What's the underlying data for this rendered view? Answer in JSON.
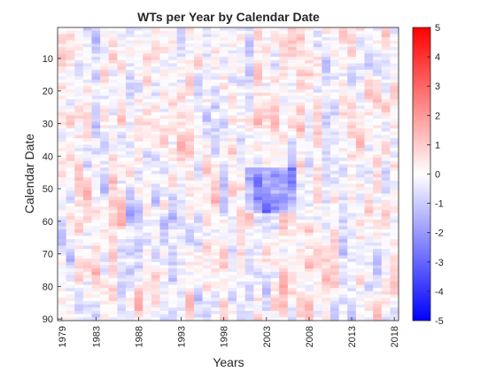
{
  "chart_data": {
    "type": "heatmap",
    "title": "WTs per Year by Calendar Date",
    "xlabel": "Years",
    "ylabel": "Calendar Date",
    "x_range": [
      1979,
      2018
    ],
    "y_range": [
      1,
      90
    ],
    "x_ticks": [
      "1979",
      "1983",
      "1988",
      "1993",
      "1998",
      "2003",
      "2008",
      "2013",
      "2018"
    ],
    "y_ticks": [
      "10",
      "20",
      "30",
      "40",
      "50",
      "60",
      "70",
      "80",
      "90"
    ],
    "colorbar": {
      "min": -5,
      "max": 5,
      "ticks": [
        "5",
        "4",
        "3",
        "2",
        "1",
        "0",
        "-1",
        "-2",
        "-3",
        "-4",
        "-5"
      ],
      "colormap": [
        "#0000ff",
        "#ffffff",
        "#ff0000"
      ]
    },
    "value_range": [
      -3.5,
      2.5
    ],
    "grid": false,
    "note_values": "cell values are dense (40 years x 90 days) and not individually labeled"
  }
}
